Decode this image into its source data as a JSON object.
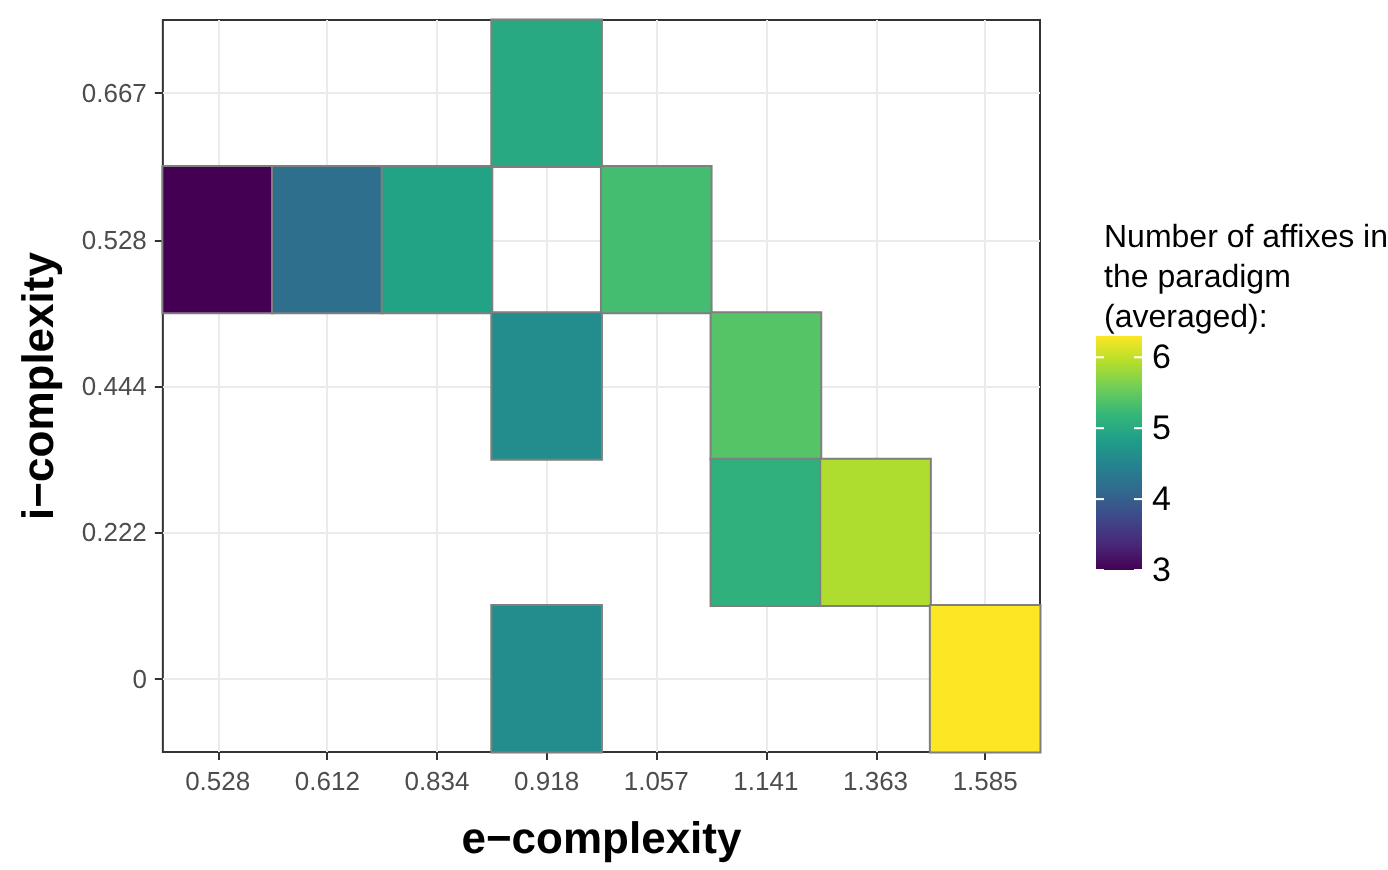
{
  "chart_data": {
    "type": "heatmap",
    "xlabel": "e−complexity",
    "ylabel": "i−complexity",
    "clabel": "Number of affixes in the paradigm (averaged):",
    "categories": [
      "0.528",
      "0.612",
      "0.834",
      "0.918",
      "1.057",
      "1.141",
      "1.363",
      "1.585"
    ],
    "y_categories": [
      "0.667",
      "0.528",
      "0.444",
      "0.222",
      "0"
    ],
    "cells": [
      [
        null,
        null,
        null,
        5.0,
        null,
        null,
        null,
        null
      ],
      [
        3.0,
        4.2,
        4.9,
        null,
        5.3,
        null,
        null,
        null
      ],
      [
        null,
        null,
        null,
        4.6,
        null,
        5.4,
        null,
        null
      ],
      [
        null,
        null,
        null,
        null,
        null,
        5.1,
        5.9,
        null
      ],
      [
        null,
        null,
        null,
        4.6,
        null,
        null,
        null,
        6.3
      ]
    ],
    "clim": [
      3,
      6.3
    ],
    "cticks": [
      3,
      4,
      5,
      6
    ],
    "grid": true
  }
}
